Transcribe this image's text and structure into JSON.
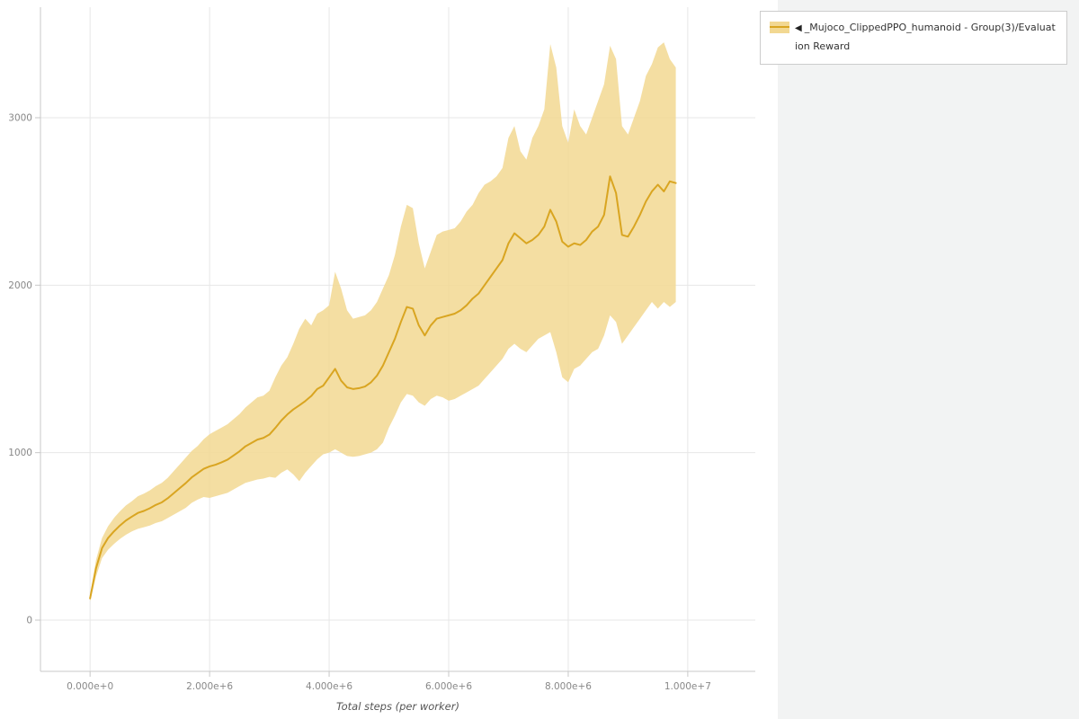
{
  "page": {
    "background": "#f2f3f3",
    "canvas_background": "#ffffff"
  },
  "legend": {
    "marker": "◀",
    "label": "_Mujoco_ClippedPPO_humanoid - Group(3)/Evaluation Reward",
    "swatch_line_color": "#d9a521",
    "swatch_band_color": "#f2d892"
  },
  "chart_data": {
    "type": "line",
    "title": "",
    "xlabel": "Total steps (per worker)",
    "ylabel": "",
    "grid": true,
    "legend_position": "top-right",
    "xlim_millions": [
      -0.83,
      11.13
    ],
    "ylim": [
      -306,
      3660
    ],
    "x_ticks": [
      {
        "value_millions": 0,
        "label": "0.000e+0"
      },
      {
        "value_millions": 2,
        "label": "2.000e+6"
      },
      {
        "value_millions": 4,
        "label": "4.000e+6"
      },
      {
        "value_millions": 6,
        "label": "6.000e+6"
      },
      {
        "value_millions": 8,
        "label": "8.000e+6"
      },
      {
        "value_millions": 10,
        "label": "1.000e+7"
      }
    ],
    "y_ticks": [
      {
        "value": 0,
        "label": "0"
      },
      {
        "value": 1000,
        "label": "1000"
      },
      {
        "value": 2000,
        "label": "2000"
      },
      {
        "value": 3000,
        "label": "3000"
      }
    ],
    "series": [
      {
        "name": "_Mujoco_ClippedPPO_humanoid - Group(3)/Evaluation Reward",
        "line_color": "#d9a521",
        "line_width": 2,
        "band_color": "#f2d892",
        "band_opacity": 0.85,
        "x_millions": [
          0,
          0.1,
          0.2,
          0.3,
          0.4,
          0.5,
          0.6,
          0.7,
          0.8,
          0.9,
          1.0,
          1.1,
          1.2,
          1.3,
          1.4,
          1.5,
          1.6,
          1.7,
          1.8,
          1.9,
          2.0,
          2.1,
          2.2,
          2.3,
          2.4,
          2.5,
          2.6,
          2.7,
          2.8,
          2.9,
          3.0,
          3.1,
          3.2,
          3.3,
          3.4,
          3.5,
          3.6,
          3.7,
          3.8,
          3.9,
          4.0,
          4.1,
          4.2,
          4.3,
          4.4,
          4.5,
          4.6,
          4.7,
          4.8,
          4.9,
          5.0,
          5.1,
          5.2,
          5.3,
          5.4,
          5.5,
          5.6,
          5.7,
          5.8,
          5.9,
          6.0,
          6.1,
          6.2,
          6.3,
          6.4,
          6.5,
          6.6,
          6.7,
          6.8,
          6.9,
          7.0,
          7.1,
          7.2,
          7.3,
          7.4,
          7.5,
          7.6,
          7.7,
          7.8,
          7.9,
          8.0,
          8.1,
          8.2,
          8.3,
          8.4,
          8.5,
          8.6,
          8.7,
          8.8,
          8.9,
          9.0,
          9.1,
          9.2,
          9.3,
          9.4,
          9.5,
          9.6,
          9.7,
          9.8
        ],
        "mean": [
          130,
          310,
          430,
          490,
          530,
          565,
          595,
          618,
          640,
          652,
          668,
          688,
          703,
          728,
          758,
          788,
          818,
          852,
          878,
          903,
          918,
          928,
          942,
          958,
          983,
          1008,
          1038,
          1058,
          1078,
          1088,
          1108,
          1148,
          1192,
          1228,
          1258,
          1282,
          1308,
          1338,
          1380,
          1400,
          1450,
          1500,
          1430,
          1390,
          1380,
          1385,
          1395,
          1420,
          1460,
          1520,
          1600,
          1680,
          1780,
          1870,
          1860,
          1760,
          1700,
          1760,
          1800,
          1810,
          1820,
          1830,
          1850,
          1880,
          1920,
          1950,
          2000,
          2050,
          2100,
          2150,
          2250,
          2310,
          2280,
          2250,
          2270,
          2300,
          2350,
          2450,
          2380,
          2260,
          2230,
          2250,
          2240,
          2270,
          2320,
          2350,
          2420,
          2650,
          2550,
          2300,
          2290,
          2350,
          2420,
          2500,
          2560,
          2600,
          2560,
          2620,
          2610
        ],
        "lower": [
          110,
          260,
          370,
          420,
          455,
          485,
          510,
          530,
          545,
          555,
          565,
          580,
          590,
          610,
          630,
          650,
          670,
          700,
          720,
          735,
          730,
          740,
          750,
          760,
          780,
          800,
          820,
          830,
          840,
          845,
          855,
          850,
          880,
          900,
          870,
          830,
          880,
          920,
          960,
          990,
          1000,
          1020,
          1000,
          980,
          975,
          980,
          990,
          1000,
          1020,
          1060,
          1150,
          1220,
          1300,
          1350,
          1340,
          1300,
          1280,
          1320,
          1340,
          1330,
          1310,
          1320,
          1340,
          1360,
          1380,
          1400,
          1440,
          1480,
          1520,
          1560,
          1620,
          1650,
          1620,
          1600,
          1640,
          1680,
          1700,
          1720,
          1600,
          1450,
          1420,
          1500,
          1520,
          1560,
          1600,
          1620,
          1700,
          1820,
          1780,
          1650,
          1700,
          1750,
          1800,
          1850,
          1900,
          1860,
          1900,
          1870,
          1900
        ],
        "upper": [
          150,
          360,
          490,
          560,
          610,
          650,
          685,
          710,
          740,
          755,
          775,
          800,
          820,
          850,
          890,
          930,
          970,
          1010,
          1040,
          1080,
          1110,
          1130,
          1150,
          1170,
          1200,
          1230,
          1270,
          1300,
          1330,
          1340,
          1370,
          1450,
          1520,
          1570,
          1650,
          1740,
          1800,
          1760,
          1830,
          1850,
          1880,
          2080,
          1980,
          1850,
          1800,
          1810,
          1820,
          1850,
          1900,
          1980,
          2060,
          2180,
          2350,
          2480,
          2460,
          2250,
          2100,
          2200,
          2300,
          2320,
          2330,
          2340,
          2380,
          2440,
          2480,
          2550,
          2600,
          2620,
          2650,
          2700,
          2880,
          2950,
          2800,
          2750,
          2880,
          2950,
          3050,
          3440,
          3300,
          2950,
          2850,
          3050,
          2950,
          2900,
          3000,
          3100,
          3200,
          3430,
          3350,
          2950,
          2900,
          3000,
          3100,
          3250,
          3320,
          3420,
          3450,
          3350,
          3300
        ]
      }
    ],
    "style": {
      "grid_color": "#e7e7e7",
      "axis_color": "#c8c8c8",
      "tick_label_color": "#888888",
      "axis_label_color": "#555555"
    }
  }
}
